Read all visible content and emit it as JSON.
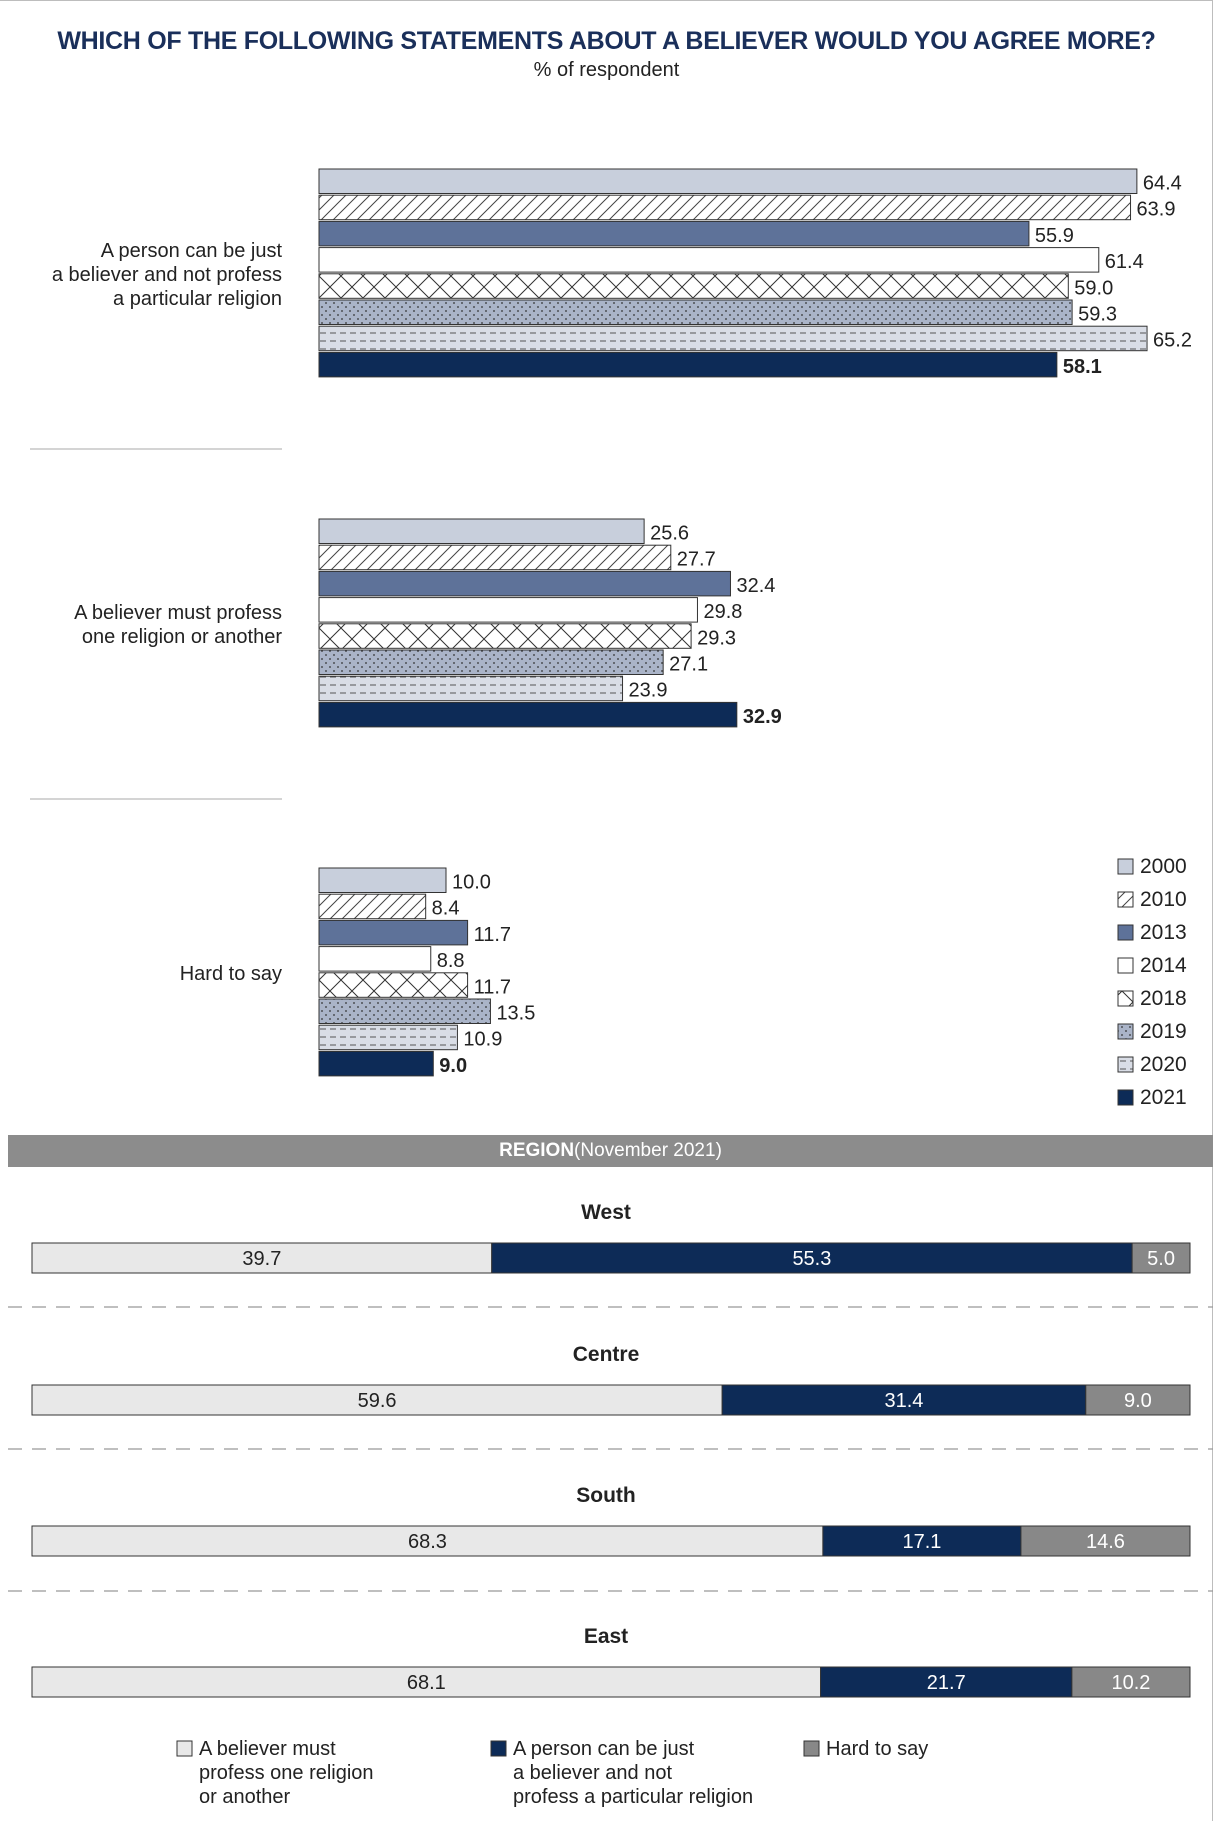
{
  "title": "WHICH OF THE FOLLOWING STATEMENTS ABOUT A BELIEVER WOULD YOU AGREE MORE?",
  "subtitle": "% of respondent",
  "region_header": {
    "label": "REGION",
    "note": "(November 2021)"
  },
  "colors": {
    "navy": "#0d2b57",
    "steel": "#5e7299",
    "light": "#c8cfdc",
    "hatch_gray": "#aab4c8",
    "region_light": "#e8e8e8",
    "region_gray": "#888888"
  },
  "chart_data": [
    {
      "type": "bar",
      "orientation": "horizontal",
      "categories": [
        "A person can be just\na believer and not profess\na particular religion",
        "A believer must profess\none religion or another",
        "Hard to say"
      ],
      "series": [
        {
          "name": "2000",
          "values": [
            64.4,
            25.6,
            10.0
          ],
          "pattern": "solid-light"
        },
        {
          "name": "2010",
          "values": [
            63.9,
            27.7,
            8.4
          ],
          "pattern": "diagonal"
        },
        {
          "name": "2013",
          "values": [
            55.9,
            32.4,
            11.7
          ],
          "pattern": "solid-steel"
        },
        {
          "name": "2014",
          "values": [
            61.4,
            29.8,
            8.8
          ],
          "pattern": "white"
        },
        {
          "name": "2018",
          "values": [
            59.0,
            29.3,
            11.7
          ],
          "pattern": "crosshatch"
        },
        {
          "name": "2019",
          "values": [
            59.3,
            27.1,
            13.5
          ],
          "pattern": "dotted-gray"
        },
        {
          "name": "2020",
          "values": [
            65.2,
            23.9,
            10.9
          ],
          "pattern": "dashed-light"
        },
        {
          "name": "2021",
          "values": [
            58.1,
            32.9,
            9.0
          ],
          "pattern": "solid-navy"
        }
      ],
      "value_labels": [
        [
          "64.4",
          "63.9",
          "55.9",
          "61.4",
          "59.0",
          "59.3",
          "65.2",
          "58.1"
        ],
        [
          "25.6",
          "27.7",
          "32.4",
          "29.8",
          "29.3",
          "27.1",
          "23.9",
          "32.9"
        ],
        [
          "10.0",
          "8.4",
          "11.7",
          "8.8",
          "11.7",
          "13.5",
          "10.9",
          "9.0"
        ]
      ],
      "xlim": [
        0,
        100
      ],
      "legend_position": "bottom-right"
    },
    {
      "type": "bar",
      "orientation": "horizontal",
      "stacked": true,
      "categories": [
        "West",
        "Centre",
        "South",
        "East"
      ],
      "series": [
        {
          "name": "A believer must profess one religion or another",
          "values": [
            39.7,
            59.6,
            68.3,
            68.1
          ]
        },
        {
          "name": "A person can be just a believer and not profess a particular religion",
          "values": [
            55.3,
            31.4,
            17.1,
            21.7
          ]
        },
        {
          "name": "Hard to say",
          "values": [
            5.0,
            9.0,
            14.6,
            10.2
          ]
        }
      ],
      "value_labels": [
        [
          "39.7",
          "55.3",
          "5.0"
        ],
        [
          "59.6",
          "31.4",
          "9.0"
        ],
        [
          "68.3",
          "17.1",
          "14.6"
        ],
        [
          "68.1",
          "21.7",
          "10.2"
        ]
      ],
      "legend": [
        "A believer must\nprofess one religion\nor another",
        "A person can be just\na believer and not\nprofess a particular religion",
        "Hard to say"
      ],
      "legend_position": "bottom"
    }
  ]
}
